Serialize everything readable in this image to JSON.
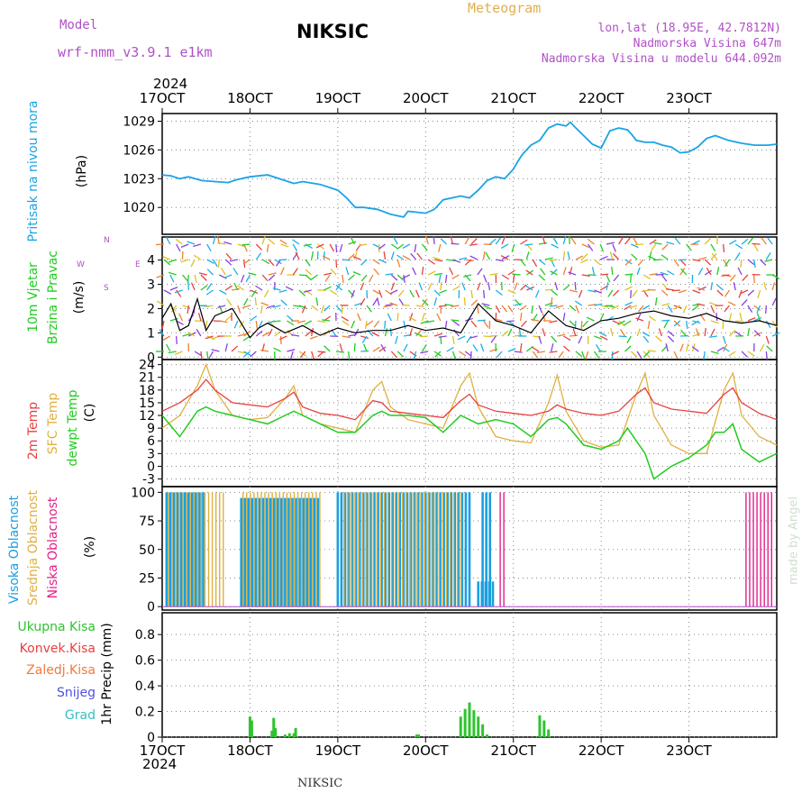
{
  "header": {
    "model_label": "Model",
    "model_value": "wrf-nmm_v3.9.1  e1km",
    "station": "NIKSIC",
    "meteogram": "Meteogram",
    "lonlat": "lon,lat (18.95E, 42.7812N)",
    "altitude": "Nadmorska Visina 647m",
    "model_altitude": "Nadmorska Visina u modelu 644.092m"
  },
  "footer": {
    "station": "NIKSIC",
    "watermark": "made by Angel"
  },
  "colors": {
    "pressure": "#1aa3e6",
    "dew": "#22cc22",
    "t2m": "#e84040",
    "sfc": "#e0b040",
    "high_cloud": "#1a9fe0",
    "mid_cloud": "#e0b040",
    "low_cloud": "#e0208a",
    "precip_total": "#2ec42e",
    "grid": "#888888"
  },
  "chart_data": [
    {
      "type": "line",
      "title": "",
      "ylabel": "Pritisak na nivou mora",
      "unit": "(hPa)",
      "year": "2024",
      "categories": [
        "17OCT",
        "18OCT",
        "19OCT",
        "20OCT",
        "21OCT",
        "22OCT",
        "23OCT"
      ],
      "yticks": [
        1020,
        1023,
        1026,
        1029
      ],
      "ylim": [
        1017.2,
        1029.8
      ],
      "series": [
        {
          "x": [
            0,
            0.1,
            0.2,
            0.3,
            0.45,
            0.6,
            0.75,
            0.85,
            1.0,
            1.2,
            1.4,
            1.5,
            1.6,
            1.8,
            2.0,
            2.1,
            2.2,
            2.3,
            2.45,
            2.6,
            2.75,
            2.8,
            2.9,
            3.0,
            3.1,
            3.2,
            3.3,
            3.4,
            3.5,
            3.6,
            3.7,
            3.8,
            3.9,
            4.0,
            4.05,
            4.1,
            4.2,
            4.3,
            4.4,
            4.5,
            4.6,
            4.65,
            4.7,
            4.8,
            4.9,
            5.0,
            5.1,
            5.2,
            5.3,
            5.35,
            5.4,
            5.5,
            5.6,
            5.7,
            5.8,
            5.9,
            6.0,
            6.1,
            6.2,
            6.3,
            6.45,
            6.6,
            6.75,
            6.9,
            7.0
          ],
          "y": [
            1023.4,
            1023.3,
            1023.0,
            1023.2,
            1022.8,
            1022.7,
            1022.6,
            1022.9,
            1023.2,
            1023.4,
            1022.8,
            1022.5,
            1022.7,
            1022.4,
            1021.8,
            1021.0,
            1020.0,
            1020.0,
            1019.8,
            1019.3,
            1019.0,
            1019.6,
            1019.5,
            1019.4,
            1019.8,
            1020.8,
            1021.0,
            1021.2,
            1021.0,
            1021.8,
            1022.8,
            1023.2,
            1023.0,
            1024.0,
            1024.8,
            1025.5,
            1026.5,
            1027.0,
            1028.3,
            1028.7,
            1028.5,
            1028.9,
            1028.4,
            1027.5,
            1026.6,
            1026.2,
            1028.0,
            1028.3,
            1028.1,
            1027.6,
            1027.0,
            1026.8,
            1026.8,
            1026.5,
            1026.3,
            1025.7,
            1025.8,
            1026.3,
            1027.2,
            1027.5,
            1027.0,
            1026.7,
            1026.5,
            1026.5,
            1026.6
          ],
          "color": "#1aa3e6"
        }
      ]
    },
    {
      "type": "line",
      "title": "",
      "ylabel": "10m Vjetar",
      "ylabel2": "Brzina i Pravac",
      "unit": "(m/s)",
      "compass": {
        "n": "N",
        "s": "S",
        "e": "E",
        "w": "W"
      },
      "yticks": [
        0,
        1,
        2,
        3,
        4
      ],
      "ylim": [
        -0.1,
        4.95
      ],
      "series": [
        {
          "name": "wind speed",
          "x": [
            0,
            0.1,
            0.2,
            0.3,
            0.4,
            0.5,
            0.6,
            0.8,
            1.0,
            1.1,
            1.2,
            1.4,
            1.6,
            1.8,
            2.0,
            2.2,
            2.4,
            2.6,
            2.8,
            3.0,
            3.2,
            3.4,
            3.6,
            3.8,
            4.0,
            4.2,
            4.4,
            4.6,
            4.8,
            5.0,
            5.2,
            5.4,
            5.6,
            5.8,
            6.0,
            6.2,
            6.4,
            6.6,
            6.8,
            7.0
          ],
          "y": [
            1.6,
            2.2,
            1.1,
            1.3,
            2.4,
            1.1,
            1.7,
            2.0,
            0.8,
            1.2,
            1.4,
            1.0,
            1.3,
            0.9,
            1.2,
            1.0,
            1.1,
            1.1,
            1.3,
            1.1,
            1.2,
            1.0,
            2.2,
            1.5,
            1.3,
            1.0,
            1.9,
            1.3,
            1.1,
            1.5,
            1.6,
            1.8,
            1.9,
            1.7,
            1.6,
            1.8,
            1.5,
            1.4,
            1.5,
            1.3
          ]
        }
      ]
    },
    {
      "type": "line",
      "title": "",
      "ylabels": [
        "2m Temp",
        "SFC Temp",
        "dewpt Temp"
      ],
      "unit": "(C)",
      "yticks": [
        -3,
        0,
        3,
        6,
        9,
        12,
        15,
        18,
        21,
        24
      ],
      "ylim": [
        -4.8,
        25.2
      ],
      "series": [
        {
          "name": "2m Temp",
          "x": [
            0,
            0.2,
            0.4,
            0.5,
            0.6,
            0.8,
            1.0,
            1.2,
            1.4,
            1.5,
            1.6,
            1.8,
            2.0,
            2.2,
            2.4,
            2.5,
            2.6,
            2.8,
            3.0,
            3.2,
            3.4,
            3.5,
            3.6,
            3.8,
            4.0,
            4.2,
            4.4,
            4.5,
            4.6,
            4.8,
            5.0,
            5.2,
            5.4,
            5.5,
            5.6,
            5.8,
            6.0,
            6.2,
            6.4,
            6.5,
            6.6,
            6.8,
            7.0
          ],
          "y": [
            13,
            15,
            18,
            20.5,
            18,
            15,
            14.5,
            14,
            16,
            17.5,
            14,
            12.5,
            12,
            11,
            15.5,
            15,
            13,
            12.5,
            12,
            11.5,
            15.5,
            17,
            14.5,
            13,
            12.5,
            12,
            13,
            14.5,
            13.5,
            12.5,
            12,
            13,
            17,
            18.5,
            15,
            13.5,
            13,
            12.5,
            17,
            18.5,
            15,
            12.5,
            11
          ]
        },
        {
          "name": "SFC Temp",
          "x": [
            0,
            0.2,
            0.4,
            0.5,
            0.6,
            0.8,
            1.0,
            1.2,
            1.4,
            1.5,
            1.6,
            1.8,
            2.0,
            2.2,
            2.4,
            2.5,
            2.6,
            2.8,
            3.0,
            3.2,
            3.4,
            3.5,
            3.6,
            3.8,
            4.0,
            4.2,
            4.4,
            4.5,
            4.6,
            4.8,
            5.0,
            5.2,
            5.4,
            5.5,
            5.6,
            5.8,
            6.0,
            6.2,
            6.4,
            6.5,
            6.6,
            6.8,
            7.0
          ],
          "y": [
            9,
            12,
            19,
            24,
            18,
            12,
            11,
            11.5,
            16,
            19,
            12,
            10,
            9,
            8,
            18,
            20,
            14,
            11,
            10,
            9,
            19,
            22,
            14,
            7,
            6,
            5.5,
            15,
            21.5,
            13,
            6,
            4.5,
            5,
            17,
            22,
            12,
            5,
            3,
            3,
            18,
            22,
            12,
            7,
            5
          ]
        },
        {
          "name": "dewpt Temp",
          "x": [
            0,
            0.2,
            0.4,
            0.5,
            0.6,
            0.8,
            1.0,
            1.2,
            1.4,
            1.5,
            1.6,
            1.8,
            2.0,
            2.2,
            2.4,
            2.5,
            2.6,
            2.8,
            3.0,
            3.2,
            3.4,
            3.5,
            3.6,
            3.8,
            4.0,
            4.2,
            4.4,
            4.5,
            4.6,
            4.8,
            5.0,
            5.2,
            5.3,
            5.4,
            5.5,
            5.6,
            5.8,
            6.0,
            6.2,
            6.3,
            6.4,
            6.5,
            6.6,
            6.8,
            7.0
          ],
          "y": [
            12,
            7,
            13,
            14,
            13,
            12,
            11,
            10,
            12,
            13,
            12,
            10,
            8,
            8,
            12,
            13,
            12,
            12,
            11.5,
            8,
            12,
            11,
            10,
            11,
            10,
            7,
            11,
            11.5,
            10,
            5,
            4,
            6,
            9,
            6,
            3,
            -3,
            0,
            2,
            5,
            8,
            8,
            10,
            4,
            1,
            3
          ]
        }
      ]
    },
    {
      "type": "bar",
      "title": "",
      "ylabels": [
        "Visoka Oblacnost",
        "Srednja Oblacnost",
        "Niska Oblacnost"
      ],
      "unit": "(%)",
      "yticks": [
        0,
        25,
        50,
        75,
        100
      ],
      "ylim": [
        -3,
        105
      ],
      "series": [
        {
          "name": "Visoka Oblacnost",
          "ranges": [
            [
              0.05,
              0.5,
              100
            ],
            [
              0.9,
              1.8,
              95
            ],
            [
              2.0,
              3.5,
              100
            ],
            [
              3.6,
              3.8,
              22
            ],
            [
              3.65,
              3.75,
              100
            ]
          ],
          "values_note": ""
        },
        {
          "name": "Srednja Oblacnost",
          "ranges": [
            [
              0.05,
              0.7,
              100
            ],
            [
              0.9,
              1.8,
              100
            ],
            [
              2.05,
              3.4,
              100
            ]
          ]
        },
        {
          "name": "Niska Oblacnost",
          "ranges": [
            [
              3.85,
              3.9,
              100
            ],
            [
              6.65,
              6.95,
              100
            ]
          ]
        }
      ]
    },
    {
      "type": "bar",
      "title": "",
      "ylabels": [
        "Ukupna Kisa",
        "Konvek.Kisa",
        "Zaledj.Kisa",
        "Snijeg",
        "Grad"
      ],
      "unit": "1hr Precip (mm)",
      "xlabel_year": "2024",
      "yticks": [
        0,
        0.2,
        0.4,
        0.6,
        0.8
      ],
      "ylim": [
        0,
        0.97
      ],
      "series": [
        {
          "name": "Ukupna Kisa",
          "x": [
            1.0,
            1.02,
            1.25,
            1.27,
            1.29,
            1.4,
            1.45,
            1.5,
            1.52,
            2.9,
            2.92,
            3.4,
            3.45,
            3.5,
            3.55,
            3.6,
            3.65,
            3.7,
            4.3,
            4.35,
            4.4
          ],
          "y": [
            0.16,
            0.13,
            0.05,
            0.15,
            0.07,
            0.02,
            0.03,
            0.03,
            0.07,
            0.02,
            0.02,
            0.16,
            0.22,
            0.27,
            0.21,
            0.16,
            0.1,
            0.02,
            0.17,
            0.13,
            0.06
          ]
        }
      ]
    }
  ]
}
